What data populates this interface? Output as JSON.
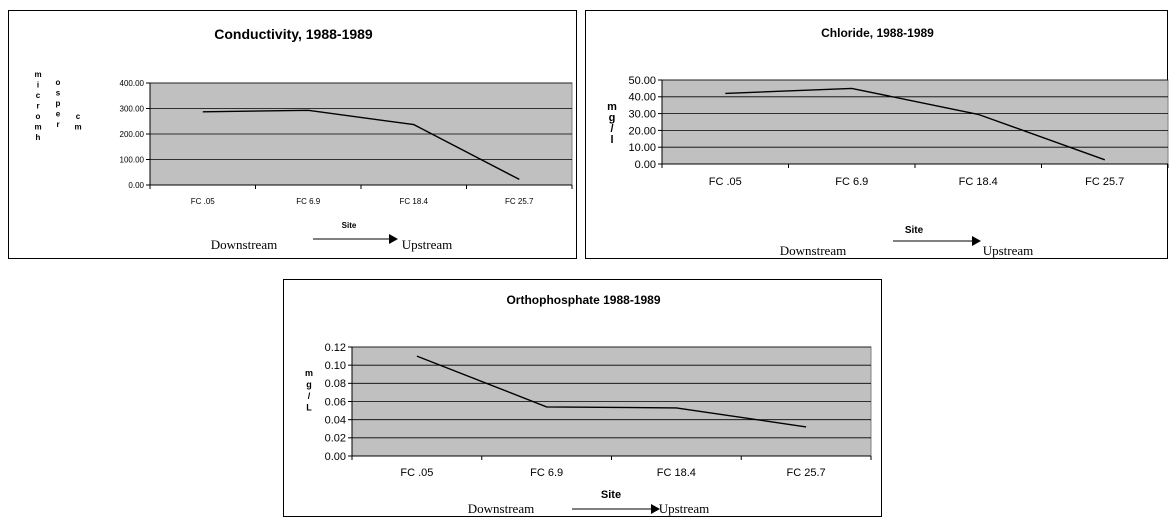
{
  "chart_data": [
    {
      "type": "line",
      "title": "Conductivity, 1988-1989",
      "xlabel": "Site",
      "ylabel": "micromhos per cm",
      "ylabel_columns": [
        [
          "m",
          "i",
          "c",
          "r",
          "o",
          "m",
          "h"
        ],
        [
          "o",
          "s",
          "p",
          "e",
          "r"
        ],
        [
          "c",
          "m"
        ]
      ],
      "categories": [
        "FC .05",
        "FC 6.9",
        "FC 18.4",
        "FC 25.7"
      ],
      "series": [
        {
          "values": [
            287,
            293,
            237,
            22
          ]
        }
      ],
      "ylim": [
        0,
        400
      ],
      "yticks": [
        "0.00",
        "100.00",
        "200.00",
        "300.00",
        "400.00"
      ],
      "grid": true,
      "legend": "none",
      "plot_background": "#c0c0c0",
      "line_color": "#000000",
      "direction_left": "Downstream",
      "direction_right": "Upstream"
    },
    {
      "type": "line",
      "title": "Chloride, 1988-1989",
      "xlabel": "Site",
      "ylabel": "mg/l",
      "ylabel_columns": [
        [
          "m",
          "g",
          "/",
          "l"
        ]
      ],
      "categories": [
        "FC .05",
        "FC 6.9",
        "FC 18.4",
        "FC 25.7"
      ],
      "series": [
        {
          "values": [
            42,
            45,
            29.5,
            2.5
          ]
        }
      ],
      "ylim": [
        0,
        50
      ],
      "yticks": [
        "0.00",
        "10.00",
        "20.00",
        "30.00",
        "40.00",
        "50.00"
      ],
      "grid": true,
      "legend": "none",
      "plot_background": "#c0c0c0",
      "line_color": "#000000",
      "direction_left": "Downstream",
      "direction_right": "Upstream"
    },
    {
      "type": "line",
      "title": "Orthophosphate 1988-1989",
      "xlabel": "Site",
      "ylabel": "mg/L",
      "ylabel_columns": [
        [
          "m",
          "g",
          "/",
          "L"
        ]
      ],
      "categories": [
        "FC .05",
        "FC 6.9",
        "FC 18.4",
        "FC 25.7"
      ],
      "series": [
        {
          "values": [
            0.11,
            0.054,
            0.053,
            0.032
          ]
        }
      ],
      "ylim": [
        0,
        0.12
      ],
      "yticks": [
        "0.00",
        "0.02",
        "0.04",
        "0.06",
        "0.08",
        "0.10",
        "0.12"
      ],
      "grid": true,
      "legend": "none",
      "plot_background": "#c0c0c0",
      "line_color": "#000000",
      "direction_left": "Downstream",
      "direction_right": "Upstream"
    }
  ]
}
